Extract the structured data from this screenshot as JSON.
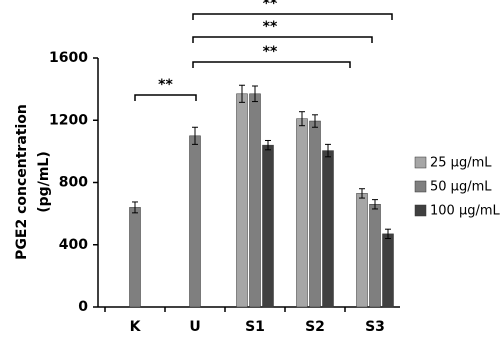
{
  "chart_data": {
    "type": "bar",
    "ylabel": [
      "PGE2 concentration",
      "(pg/mL)"
    ],
    "categories": [
      "K",
      "U",
      "S1",
      "S2",
      "S3"
    ],
    "series": [
      {
        "name": "25 µg/mL",
        "color": "#a6a6a6",
        "values": [
          null,
          null,
          1370,
          1210,
          730
        ],
        "errors": [
          null,
          null,
          55,
          45,
          30
        ]
      },
      {
        "name": "50 µg/mL",
        "color": "#7f7f7f",
        "values": [
          640,
          1100,
          1370,
          1195,
          660
        ],
        "errors": [
          35,
          55,
          50,
          40,
          30
        ]
      },
      {
        "name": "100 µg/mL",
        "color": "#404040",
        "values": [
          null,
          null,
          1040,
          1005,
          470
        ],
        "errors": [
          null,
          null,
          30,
          40,
          30
        ]
      }
    ],
    "annotations": [
      "**",
      "**",
      "**",
      "**"
    ],
    "ylim": [
      0,
      1600
    ],
    "yticks": [
      0,
      400,
      800,
      1200,
      1600
    ]
  }
}
